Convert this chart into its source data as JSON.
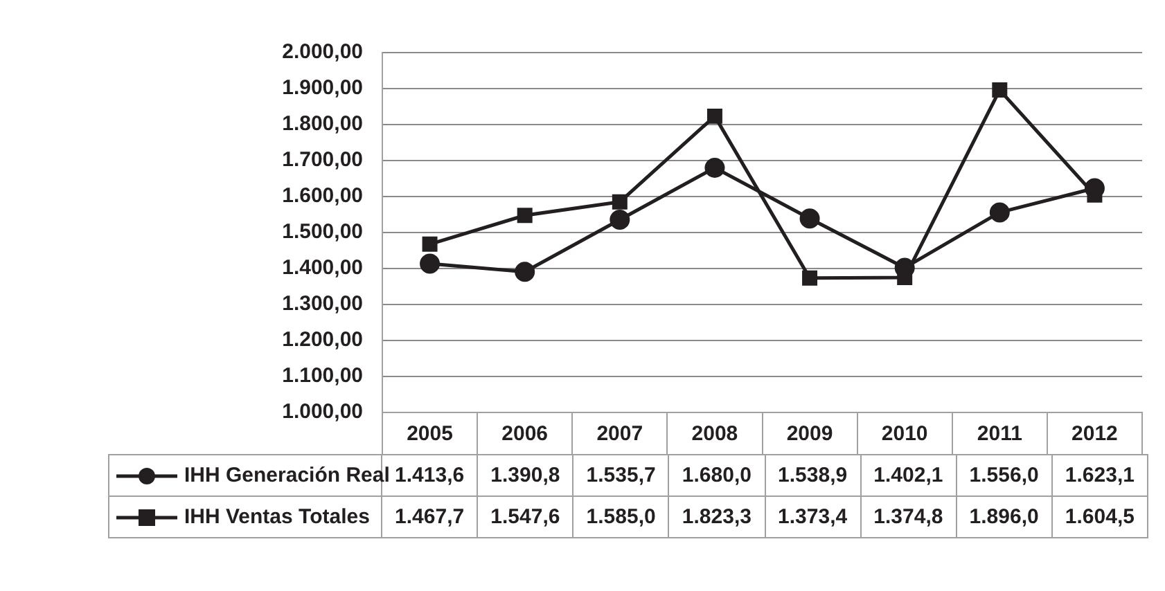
{
  "chart_data": {
    "type": "line",
    "categories": [
      "2005",
      "2006",
      "2007",
      "2008",
      "2009",
      "2010",
      "2011",
      "2012"
    ],
    "series": [
      {
        "name": "IHH Generación Real",
        "color": "#231f20",
        "marker": "circle",
        "values": [
          1413.6,
          1390.8,
          1535.7,
          1680.0,
          1538.9,
          1402.1,
          1556.0,
          1623.1
        ],
        "value_labels": [
          "1.413,6",
          "1.390,8",
          "1.535,7",
          "1.680,0",
          "1.538,9",
          "1.402,1",
          "1.556,0",
          "1.623,1"
        ]
      },
      {
        "name": "IHH Ventas Totales",
        "color": "#231f20",
        "marker": "square",
        "values": [
          1467.7,
          1547.6,
          1585.0,
          1823.3,
          1373.4,
          1374.8,
          1896.0,
          1604.5
        ],
        "value_labels": [
          "1.467,7",
          "1.547,6",
          "1.585,0",
          "1.823,3",
          "1.373,4",
          "1.374,8",
          "1.896,0",
          "1.604,5"
        ]
      }
    ],
    "ylim": [
      1000,
      2000
    ],
    "yticks": [
      {
        "value": 1000,
        "label": "1.000,00"
      },
      {
        "value": 1100,
        "label": "1.100,00"
      },
      {
        "value": 1200,
        "label": "1.200,00"
      },
      {
        "value": 1300,
        "label": "1.300,00"
      },
      {
        "value": 1400,
        "label": "1.400,00"
      },
      {
        "value": 1500,
        "label": "1.500,00"
      },
      {
        "value": 1600,
        "label": "1.600,00"
      },
      {
        "value": 1700,
        "label": "1.700,00"
      },
      {
        "value": 1800,
        "label": "1.800,00"
      },
      {
        "value": 1900,
        "label": "1.900,00"
      },
      {
        "value": 2000,
        "label": "2.000,00"
      }
    ],
    "grid": "y",
    "legend": "bottom",
    "line_style": "solid"
  }
}
